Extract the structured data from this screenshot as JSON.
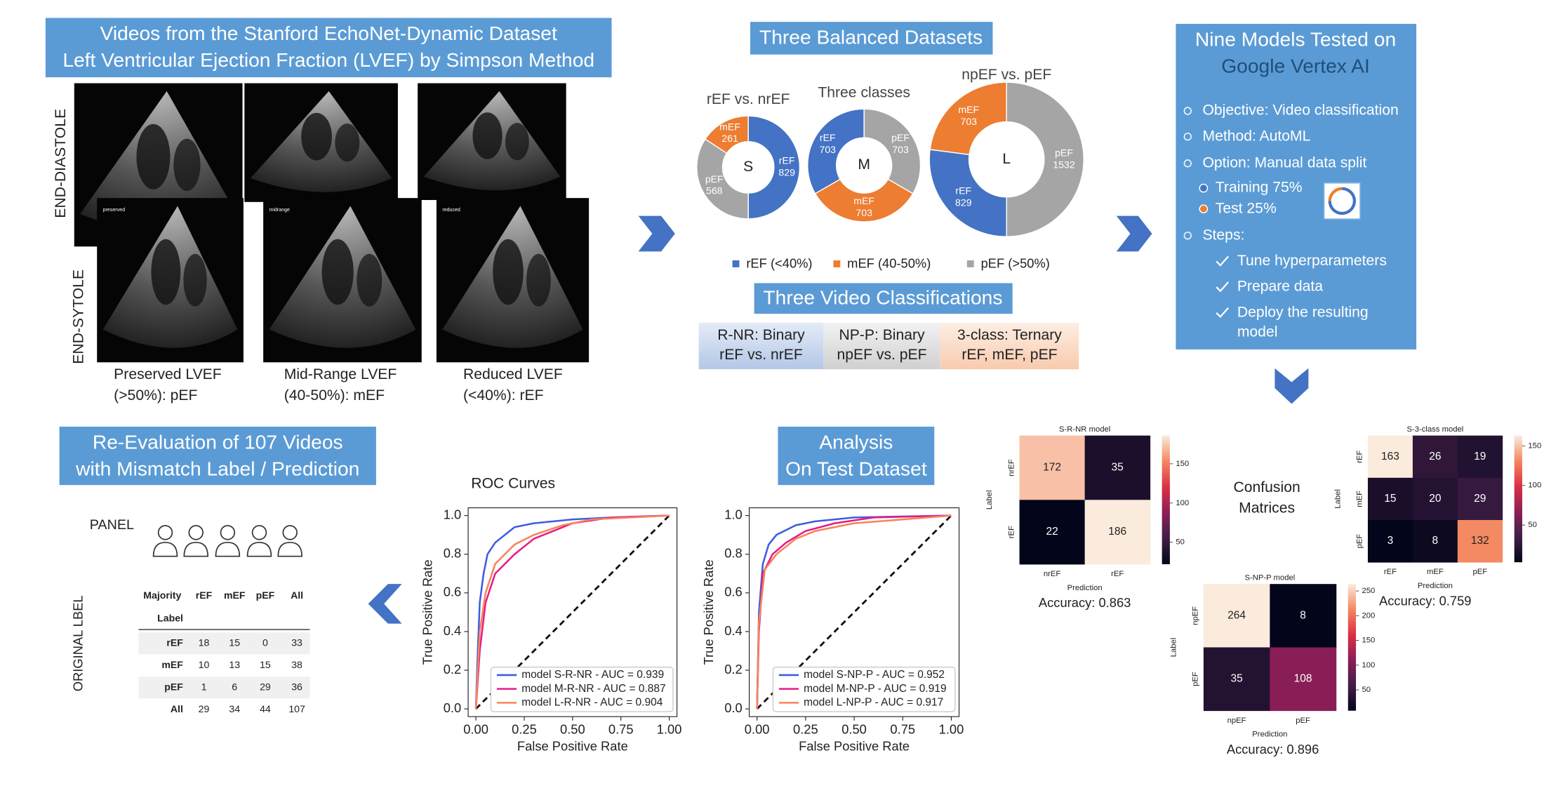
{
  "video_panel": {
    "title": [
      "Videos from the Stanford EchoNet-Dynamic Dataset",
      "Left Ventricular Ejection Fraction (LVEF) by Simpson Method"
    ],
    "phases": [
      "END-DIASTOLE",
      "END-SYTOLE"
    ],
    "frame_tags": [
      "preserved",
      "midrange",
      "reduced"
    ],
    "captions": [
      [
        "Preserved LVEF",
        "(>50%): pEF"
      ],
      [
        "Mid-Range LVEF",
        "(40-50%): mEF"
      ],
      [
        "Reduced LVEF",
        "(<40%): rEF"
      ]
    ]
  },
  "datasets": {
    "title": "Three Balanced Datasets",
    "classes": [
      {
        "name": "rEF",
        "label": "rEF (<40%)",
        "color": "#4472c4"
      },
      {
        "name": "mEF",
        "label": "mEF (40-50%)",
        "color": "#ed7d31"
      },
      {
        "name": "pEF",
        "label": "pEF (>50%)",
        "color": "#a5a5a5"
      }
    ],
    "donuts": [
      {
        "title": "rEF vs. nrEF",
        "center": "S",
        "segments": [
          {
            "name": "rEF",
            "value": 829
          },
          {
            "name": "pEF",
            "value": 568
          },
          {
            "name": "mEF",
            "value": 261
          }
        ]
      },
      {
        "title": "Three classes",
        "center": "M",
        "segments": [
          {
            "name": "pEF",
            "value": 703
          },
          {
            "name": "mEF",
            "value": 703
          },
          {
            "name": "rEF",
            "value": 703
          }
        ]
      },
      {
        "title": "npEF vs. pEF",
        "center": "L",
        "segments": [
          {
            "name": "pEF",
            "value": 1532
          },
          {
            "name": "rEF",
            "value": 829
          },
          {
            "name": "mEF",
            "value": 703
          }
        ]
      }
    ]
  },
  "classifications": {
    "title": "Three Video Classifications",
    "items": [
      [
        "R-NR: Binary",
        "rEF vs. nrEF"
      ],
      [
        "NP-P: Binary",
        "npEF vs. pEF"
      ],
      [
        "3-class: Ternary",
        "rEF, mEF, pEF"
      ]
    ]
  },
  "models": {
    "title": [
      "Nine Models Tested on",
      "Google Vertex AI"
    ],
    "bullets": [
      "Objective: Video classification",
      "Method: AutoML",
      "Option: Manual data split"
    ],
    "split": [
      {
        "label": "Training 75%",
        "value": 75,
        "color": "#4472c4"
      },
      {
        "label": "Test 25%",
        "value": 25,
        "color": "#ed7d31"
      }
    ],
    "steps_label": "Steps:",
    "steps": [
      "Tune hyperparameters",
      "Prepare data",
      [
        "Deploy the resulting",
        "model"
      ]
    ]
  },
  "confusion": {
    "title": [
      "Confusion",
      "Matrices"
    ],
    "ylabel": "Label",
    "xlabel": "Prediction",
    "matrices": [
      {
        "title": "S-R-NR model",
        "labels": [
          "nrEF",
          "rEF"
        ],
        "values": [
          [
            172,
            35
          ],
          [
            22,
            186
          ]
        ],
        "cbar_ticks": [
          50,
          100,
          150
        ],
        "accuracy": "Accuracy: 0.863"
      },
      {
        "title": "S-3-class model",
        "labels": [
          "rEF",
          "mEF",
          "pEF"
        ],
        "values": [
          [
            163,
            26,
            19
          ],
          [
            15,
            20,
            29
          ],
          [
            3,
            8,
            132
          ]
        ],
        "cbar_ticks": [
          50,
          100,
          150
        ],
        "accuracy": "Accuracy: 0.759"
      },
      {
        "title": "S-NP-P model",
        "labels": [
          "npEF",
          "pEF"
        ],
        "values": [
          [
            264,
            8
          ],
          [
            35,
            108
          ]
        ],
        "cbar_ticks": [
          50,
          100,
          150,
          200,
          250
        ],
        "accuracy": "Accuracy: 0.896"
      }
    ]
  },
  "analysis": {
    "title": [
      "Analysis",
      "On Test Dataset"
    ],
    "roc": [
      {
        "title": "ROC Curves",
        "xlabel": "False Positive Rate",
        "ylabel": "True Positive Rate",
        "xlim": [
          -0.04,
          1.04
        ],
        "ylim": [
          -0.04,
          1.04
        ],
        "xticks": [
          {
            "value": 0,
            "label": "0.00"
          },
          0.25,
          {
            "value": 0.5,
            "label": "0.50"
          },
          0.75,
          {
            "value": 1,
            "label": "1.00"
          }
        ],
        "yticks": [
          {
            "value": 0,
            "label": "0.0"
          },
          0.2,
          0.4,
          0.6,
          0.8,
          {
            "value": 1,
            "label": "1.0"
          }
        ],
        "series": [
          {
            "name": "model S-R-NR - AUC = 0.939",
            "color": "#3d5ce0",
            "fpr": [
              0,
              0.01,
              0.02,
              0.04,
              0.06,
              0.1,
              0.15,
              0.2,
              0.3,
              0.5,
              0.7,
              1
            ],
            "tpr": [
              0,
              0.3,
              0.55,
              0.7,
              0.8,
              0.86,
              0.9,
              0.94,
              0.96,
              0.98,
              0.99,
              1
            ]
          },
          {
            "name": "model M-R-NR - AUC = 0.887",
            "color": "#e61c84",
            "fpr": [
              0,
              0.02,
              0.05,
              0.1,
              0.2,
              0.3,
              0.4,
              0.5,
              0.7,
              1
            ],
            "tpr": [
              0,
              0.3,
              0.55,
              0.7,
              0.8,
              0.88,
              0.92,
              0.96,
              0.99,
              1
            ]
          },
          {
            "name": "model L-R-NR - AUC = 0.904",
            "color": "#f5845a",
            "fpr": [
              0,
              0.02,
              0.05,
              0.1,
              0.2,
              0.3,
              0.45,
              0.6,
              1
            ],
            "tpr": [
              0,
              0.4,
              0.6,
              0.75,
              0.85,
              0.9,
              0.95,
              0.98,
              1
            ]
          }
        ]
      },
      {
        "xlabel": "False Positive Rate",
        "ylabel": "True Positive Rate",
        "xlim": [
          -0.04,
          1.04
        ],
        "ylim": [
          -0.04,
          1.04
        ],
        "xticks": [
          {
            "value": 0,
            "label": "0.00"
          },
          0.25,
          {
            "value": 0.5,
            "label": "0.50"
          },
          0.75,
          {
            "value": 1,
            "label": "1.00"
          }
        ],
        "yticks": [
          {
            "value": 0,
            "label": "0.0"
          },
          0.2,
          0.4,
          0.6,
          0.8,
          {
            "value": 1,
            "label": "1.0"
          }
        ],
        "series": [
          {
            "name": "model S-NP-P - AUC = 0.952",
            "color": "#3d5ce0",
            "fpr": [
              0,
              0.01,
              0.03,
              0.06,
              0.1,
              0.2,
              0.3,
              0.5,
              1
            ],
            "tpr": [
              0,
              0.5,
              0.75,
              0.85,
              0.9,
              0.95,
              0.97,
              0.99,
              1
            ]
          },
          {
            "name": "model M-NP-P - AUC = 0.919",
            "color": "#e61c84",
            "fpr": [
              0,
              0.01,
              0.03,
              0.08,
              0.15,
              0.25,
              0.4,
              0.6,
              1
            ],
            "tpr": [
              0,
              0.4,
              0.7,
              0.8,
              0.86,
              0.92,
              0.96,
              0.99,
              1
            ]
          },
          {
            "name": "model L-NP-P - AUC = 0.917",
            "color": "#f5845a",
            "fpr": [
              0,
              0.01,
              0.04,
              0.1,
              0.2,
              0.3,
              0.5,
              1
            ],
            "tpr": [
              0,
              0.45,
              0.72,
              0.8,
              0.88,
              0.92,
              0.96,
              1
            ]
          }
        ]
      }
    ]
  },
  "reevaluation": {
    "title": [
      "Re-Evaluation of 107 Videos",
      "with Mismatch Label / Prediction"
    ],
    "panel_label": "PANEL",
    "axis_label": "ORIGINAL LBEL",
    "header": [
      "Majority",
      "rEF",
      "mEF",
      "pEF",
      "All"
    ],
    "header2": "Label",
    "rows": [
      [
        "rEF",
        18,
        15,
        0,
        33
      ],
      [
        "mEF",
        10,
        13,
        15,
        38
      ],
      [
        "pEF",
        1,
        6,
        29,
        36
      ],
      [
        "All",
        29,
        34,
        44,
        107
      ]
    ]
  }
}
